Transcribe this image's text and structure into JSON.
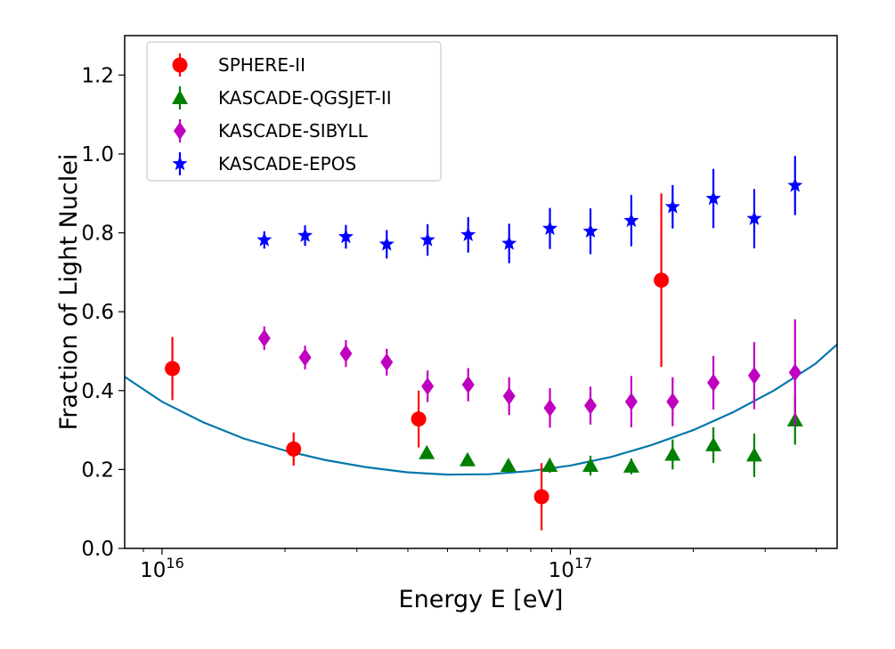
{
  "chart_data": {
    "type": "scatter",
    "xlabel": "Energy E [eV]",
    "ylabel": "Fraction of Light Nuclei",
    "xscale": "log",
    "xlim": [
      8100000000000000.0,
      4.5e+17
    ],
    "ylim": [
      0.0,
      1.3
    ],
    "x_ticks": [
      {
        "value": 1e+16,
        "base": "10",
        "exp": "16"
      },
      {
        "value": 1e+17,
        "base": "10",
        "exp": "17"
      }
    ],
    "y_ticks": [
      "0.0",
      "0.2",
      "0.4",
      "0.6",
      "0.8",
      "1.0",
      "1.2"
    ],
    "grid": false,
    "legend_position": "top-left",
    "series": [
      {
        "name": "SPHERE-II",
        "marker": "circle",
        "color": "#ff0000",
        "points": [
          {
            "x": 1.06e+16,
            "y": 0.456,
            "yerr": [
              0.08,
              0.08
            ]
          },
          {
            "x": 2.1e+16,
            "y": 0.252,
            "yerr": [
              0.042,
              0.042
            ]
          },
          {
            "x": 4.25e+16,
            "y": 0.328,
            "yerr": [
              0.072,
              0.072
            ]
          },
          {
            "x": 8.5e+16,
            "y": 0.131,
            "yerr": [
              0.085,
              0.085
            ]
          },
          {
            "x": 1.67e+17,
            "y": 0.68,
            "yerr": [
              0.22,
              0.22
            ]
          }
        ]
      },
      {
        "name": "KASCADE-QGSJET-II",
        "marker": "triangle",
        "color": "#008000",
        "points": [
          {
            "x": 4.45e+16,
            "y": 0.242,
            "yerr": [
              0.012,
              0.012
            ]
          },
          {
            "x": 5.6e+16,
            "y": 0.224,
            "yerr": [
              0.012,
              0.012
            ]
          },
          {
            "x": 7.05e+16,
            "y": 0.21,
            "yerr": [
              0.015,
              0.015
            ]
          },
          {
            "x": 8.9e+16,
            "y": 0.21,
            "yerr": [
              0.018,
              0.018
            ]
          },
          {
            "x": 1.12e+17,
            "y": 0.21,
            "yerr": [
              0.025,
              0.025
            ]
          },
          {
            "x": 1.41e+17,
            "y": 0.208,
            "yerr": [
              0.02,
              0.02
            ]
          },
          {
            "x": 1.78e+17,
            "y": 0.238,
            "yerr": [
              0.038,
              0.038
            ]
          },
          {
            "x": 2.24e+17,
            "y": 0.262,
            "yerr": [
              0.045,
              0.045
            ]
          },
          {
            "x": 2.82e+17,
            "y": 0.236,
            "yerr": [
              0.055,
              0.055
            ]
          },
          {
            "x": 3.55e+17,
            "y": 0.325,
            "yerr": [
              0.062,
              0.062
            ]
          }
        ]
      },
      {
        "name": "KASCADE-SIBYLL",
        "marker": "diamond",
        "color": "#c000c0",
        "points": [
          {
            "x": 1.78e+16,
            "y": 0.533,
            "yerr": [
              0.03,
              0.03
            ]
          },
          {
            "x": 2.24e+16,
            "y": 0.484,
            "yerr": [
              0.03,
              0.03
            ]
          },
          {
            "x": 2.82e+16,
            "y": 0.494,
            "yerr": [
              0.034,
              0.034
            ]
          },
          {
            "x": 3.55e+16,
            "y": 0.472,
            "yerr": [
              0.034,
              0.034
            ]
          },
          {
            "x": 4.47e+16,
            "y": 0.411,
            "yerr": [
              0.04,
              0.04
            ]
          },
          {
            "x": 5.62e+16,
            "y": 0.415,
            "yerr": [
              0.042,
              0.042
            ]
          },
          {
            "x": 7.08e+16,
            "y": 0.386,
            "yerr": [
              0.048,
              0.048
            ]
          },
          {
            "x": 8.91e+16,
            "y": 0.356,
            "yerr": [
              0.05,
              0.05
            ]
          },
          {
            "x": 1.12e+17,
            "y": 0.362,
            "yerr": [
              0.048,
              0.048
            ]
          },
          {
            "x": 1.41e+17,
            "y": 0.372,
            "yerr": [
              0.065,
              0.065
            ]
          },
          {
            "x": 1.78e+17,
            "y": 0.372,
            "yerr": [
              0.062,
              0.062
            ]
          },
          {
            "x": 2.24e+17,
            "y": 0.42,
            "yerr": [
              0.068,
              0.068
            ]
          },
          {
            "x": 2.82e+17,
            "y": 0.438,
            "yerr": [
              0.085,
              0.085
            ]
          },
          {
            "x": 3.55e+17,
            "y": 0.446,
            "yerr": [
              0.135,
              0.135
            ]
          }
        ]
      },
      {
        "name": "KASCADE-EPOS",
        "marker": "star",
        "color": "#0000ff",
        "points": [
          {
            "x": 1.78e+16,
            "y": 0.782,
            "yerr": [
              0.022,
              0.022
            ]
          },
          {
            "x": 2.24e+16,
            "y": 0.793,
            "yerr": [
              0.026,
              0.026
            ]
          },
          {
            "x": 2.82e+16,
            "y": 0.79,
            "yerr": [
              0.03,
              0.03
            ]
          },
          {
            "x": 3.55e+16,
            "y": 0.771,
            "yerr": [
              0.036,
              0.036
            ]
          },
          {
            "x": 4.47e+16,
            "y": 0.782,
            "yerr": [
              0.04,
              0.04
            ]
          },
          {
            "x": 5.62e+16,
            "y": 0.795,
            "yerr": [
              0.045,
              0.045
            ]
          },
          {
            "x": 7.08e+16,
            "y": 0.773,
            "yerr": [
              0.05,
              0.05
            ]
          },
          {
            "x": 8.91e+16,
            "y": 0.811,
            "yerr": [
              0.052,
              0.052
            ]
          },
          {
            "x": 1.12e+17,
            "y": 0.804,
            "yerr": [
              0.058,
              0.058
            ]
          },
          {
            "x": 1.41e+17,
            "y": 0.831,
            "yerr": [
              0.065,
              0.065
            ]
          },
          {
            "x": 1.78e+17,
            "y": 0.866,
            "yerr": [
              0.055,
              0.055
            ]
          },
          {
            "x": 2.24e+17,
            "y": 0.887,
            "yerr": [
              0.075,
              0.075
            ]
          },
          {
            "x": 2.82e+17,
            "y": 0.836,
            "yerr": [
              0.075,
              0.075
            ]
          },
          {
            "x": 3.55e+17,
            "y": 0.92,
            "yerr": [
              0.075,
              0.075
            ]
          }
        ]
      }
    ],
    "curve": {
      "type": "line",
      "color": "#0077aa",
      "points": [
        {
          "x": 8100000000000000.0,
          "y": 0.435
        },
        {
          "x": 1e+16,
          "y": 0.372
        },
        {
          "x": 1.26e+16,
          "y": 0.32
        },
        {
          "x": 1.58e+16,
          "y": 0.279
        },
        {
          "x": 2e+16,
          "y": 0.248
        },
        {
          "x": 2.51e+16,
          "y": 0.224
        },
        {
          "x": 3.16e+16,
          "y": 0.206
        },
        {
          "x": 3.98e+16,
          "y": 0.193
        },
        {
          "x": 5e+16,
          "y": 0.187
        },
        {
          "x": 6.31e+16,
          "y": 0.188
        },
        {
          "x": 7.94e+16,
          "y": 0.196
        },
        {
          "x": 1e+17,
          "y": 0.21
        },
        {
          "x": 1.26e+17,
          "y": 0.232
        },
        {
          "x": 1.58e+17,
          "y": 0.262
        },
        {
          "x": 2e+17,
          "y": 0.3
        },
        {
          "x": 2.51e+17,
          "y": 0.346
        },
        {
          "x": 3.16e+17,
          "y": 0.401
        },
        {
          "x": 3.98e+17,
          "y": 0.468
        },
        {
          "x": 4.5e+17,
          "y": 0.517
        }
      ]
    }
  }
}
